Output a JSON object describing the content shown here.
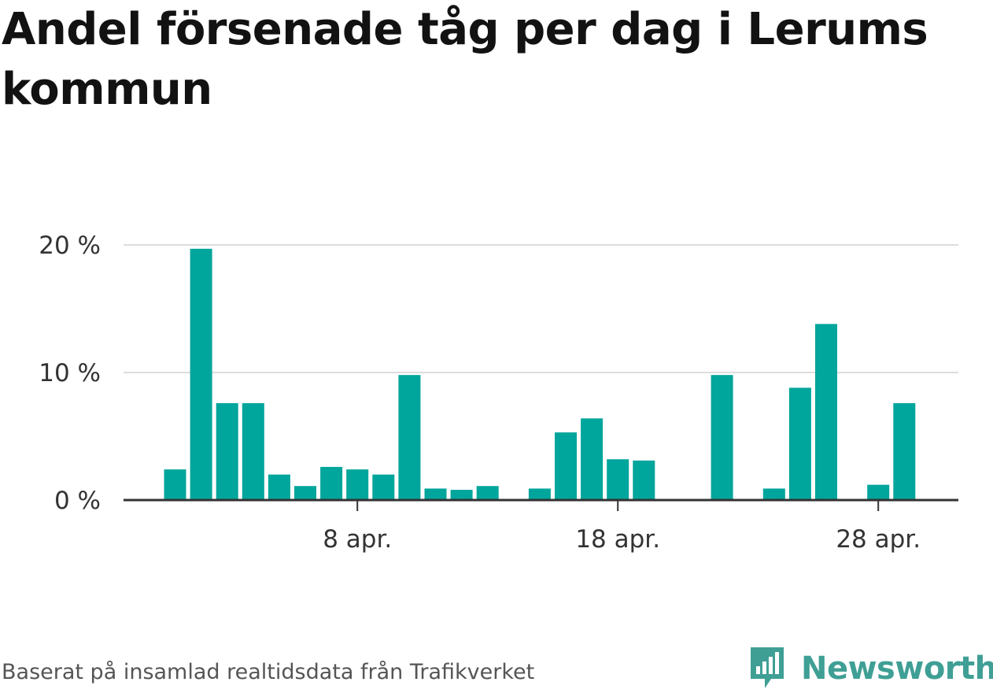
{
  "chart_data": {
    "type": "bar",
    "title": "Andel försenade tåg per dag i Lerums kommun",
    "xlabel": "",
    "ylabel": "",
    "x": [
      1,
      2,
      3,
      4,
      5,
      6,
      7,
      8,
      9,
      10,
      11,
      12,
      13,
      14,
      15,
      16,
      17,
      18,
      19,
      20,
      21,
      22,
      23,
      24,
      25,
      26,
      27,
      28,
      29,
      30
    ],
    "values": [
      2.4,
      19.7,
      7.6,
      7.6,
      2.0,
      1.1,
      2.6,
      2.4,
      2.0,
      9.8,
      0.9,
      0.8,
      1.1,
      0,
      0.9,
      5.3,
      6.4,
      3.2,
      3.1,
      0,
      0,
      9.8,
      0,
      0.9,
      8.8,
      13.8,
      0,
      1.2,
      7.6,
      0
    ],
    "xticks": [
      {
        "x": 8,
        "label": "8 apr."
      },
      {
        "x": 18,
        "label": "18 apr."
      },
      {
        "x": 28,
        "label": "28 apr."
      }
    ],
    "yticks": [
      {
        "value": 0,
        "label": "0 %"
      },
      {
        "value": 10,
        "label": "10 %"
      },
      {
        "value": 20,
        "label": "20 %"
      }
    ],
    "ylim": [
      0,
      20
    ],
    "grid": true,
    "colors": {
      "bar": "#00a59b",
      "grid": "#dddddd",
      "axis": "#333333"
    }
  },
  "footer": {
    "source": "Baserat på insamlad realtidsdata från Trafikverket",
    "brand": "Newsworthy"
  },
  "brand_colors": {
    "logo": "#3f9f95"
  }
}
